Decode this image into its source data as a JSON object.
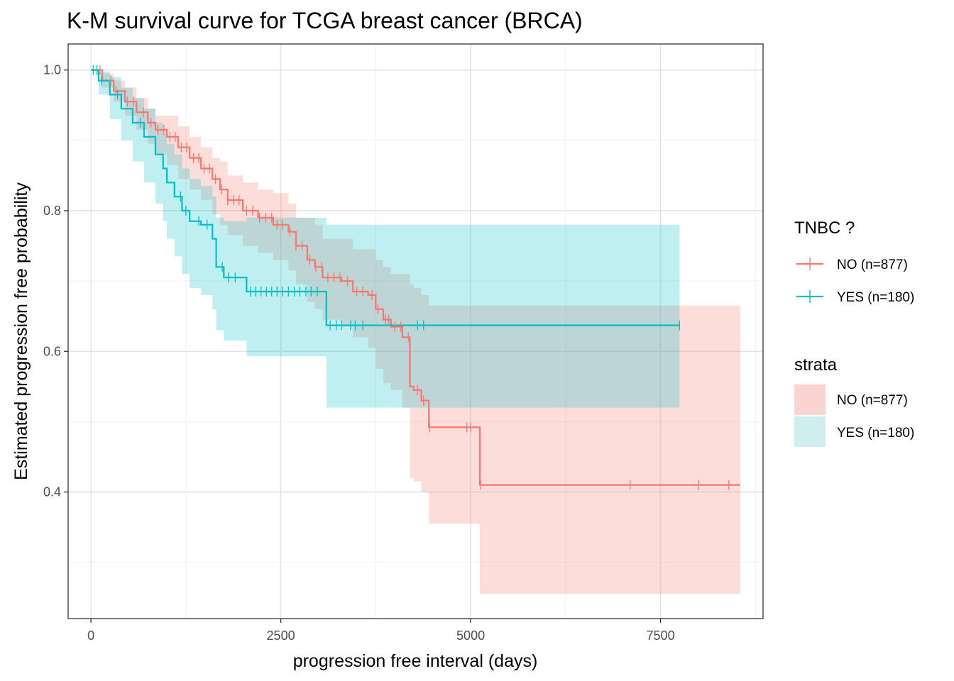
{
  "chart_data": {
    "type": "line",
    "subtype": "kaplan-meier-step",
    "title": "K-M survival curve for TCGA breast cancer (BRCA)",
    "xlabel": "progression free interval (days)",
    "ylabel": "Estimated progression free probability",
    "xlim": [
      -300,
      8850
    ],
    "ylim": [
      0.22,
      1.037
    ],
    "x_ticks": [
      {
        "value": 0,
        "label": "0"
      },
      {
        "value": 2500,
        "label": "2500"
      },
      {
        "value": 5000,
        "label": "5000"
      },
      {
        "value": 7500,
        "label": "7500"
      }
    ],
    "y_ticks": [
      {
        "value": 0.4,
        "label": "0.4"
      },
      {
        "value": 0.6,
        "label": "0.6"
      },
      {
        "value": 0.8,
        "label": "0.8"
      },
      {
        "value": 1.0,
        "label": "1.0"
      }
    ],
    "grid": true,
    "legend_placement": "right",
    "legends": [
      {
        "title": "TNBC ?",
        "kind": "line",
        "entries": [
          "NO (n=877)",
          "YES (n=180)"
        ]
      },
      {
        "title": "strata",
        "kind": "fill",
        "entries": [
          "NO (n=877)",
          "YES (n=180)"
        ]
      }
    ],
    "series": [
      {
        "name": "NO (n=877)",
        "color": "#f8766d",
        "fill_color": "#fbd3d0",
        "x": [
          0,
          150,
          300,
          450,
          600,
          750,
          850,
          1000,
          1150,
          1300,
          1450,
          1600,
          1700,
          1800,
          2000,
          2200,
          2400,
          2600,
          2700,
          2850,
          2950,
          3050,
          3300,
          3450,
          3650,
          3750,
          3850,
          3950,
          4100,
          4200,
          4250,
          4350,
          4450,
          5050,
          5120,
          8550
        ],
        "y": [
          1.0,
          0.985,
          0.97,
          0.955,
          0.94,
          0.925,
          0.915,
          0.905,
          0.89,
          0.875,
          0.86,
          0.845,
          0.83,
          0.815,
          0.8,
          0.79,
          0.78,
          0.77,
          0.75,
          0.73,
          0.72,
          0.705,
          0.7,
          0.685,
          0.68,
          0.66,
          0.645,
          0.635,
          0.62,
          0.55,
          0.545,
          0.53,
          0.492,
          0.492,
          0.41,
          0.41
        ],
        "lower": [
          1.0,
          0.975,
          0.955,
          0.935,
          0.915,
          0.895,
          0.88,
          0.865,
          0.845,
          0.83,
          0.815,
          0.795,
          0.78,
          0.765,
          0.75,
          0.74,
          0.73,
          0.715,
          0.695,
          0.67,
          0.66,
          0.645,
          0.635,
          0.62,
          0.605,
          0.575,
          0.555,
          0.545,
          0.52,
          0.42,
          0.415,
          0.4,
          0.355,
          0.355,
          0.255,
          0.255
        ],
        "upper": [
          1.0,
          0.995,
          0.985,
          0.975,
          0.96,
          0.945,
          0.935,
          0.935,
          0.92,
          0.905,
          0.89,
          0.875,
          0.87,
          0.85,
          0.84,
          0.83,
          0.825,
          0.81,
          0.79,
          0.79,
          0.78,
          0.76,
          0.76,
          0.745,
          0.745,
          0.73,
          0.72,
          0.71,
          0.71,
          0.695,
          0.69,
          0.68,
          0.665,
          0.665,
          0.665,
          0.665
        ],
        "censor_x": [
          120,
          260,
          330,
          480,
          560,
          690,
          790,
          880,
          960,
          1040,
          1110,
          1190,
          1260,
          1350,
          1420,
          1490,
          1560,
          1640,
          1720,
          1800,
          1880,
          1950,
          2050,
          2130,
          2220,
          2300,
          2380,
          2450,
          2520,
          2620,
          2700,
          2780,
          2880,
          2960,
          3040,
          3120,
          3200,
          3280,
          3380,
          3500,
          3580,
          3700,
          3780,
          3880,
          3920,
          4000,
          4080,
          4180,
          4300,
          4380,
          4460,
          4950,
          5000,
          5130,
          7100,
          8000,
          8400
        ]
      },
      {
        "name": "YES (n=180)",
        "color": "#00bfc4",
        "fill_color": "#d0eef0",
        "x": [
          0,
          100,
          250,
          400,
          550,
          700,
          850,
          950,
          1000,
          1100,
          1200,
          1300,
          1450,
          1600,
          1650,
          1750,
          2050,
          3050,
          3100,
          7750
        ],
        "y": [
          1.0,
          0.985,
          0.965,
          0.945,
          0.925,
          0.905,
          0.88,
          0.86,
          0.84,
          0.82,
          0.8,
          0.785,
          0.78,
          0.76,
          0.72,
          0.705,
          0.685,
          0.685,
          0.637,
          0.637
        ],
        "lower": [
          1.0,
          0.965,
          0.93,
          0.9,
          0.87,
          0.84,
          0.81,
          0.785,
          0.76,
          0.735,
          0.71,
          0.69,
          0.68,
          0.66,
          0.63,
          0.615,
          0.593,
          0.593,
          0.52,
          0.52
        ],
        "upper": [
          1.0,
          0.998,
          0.99,
          0.975,
          0.96,
          0.945,
          0.925,
          0.91,
          0.895,
          0.88,
          0.86,
          0.845,
          0.835,
          0.82,
          0.79,
          0.785,
          0.79,
          0.79,
          0.78,
          0.78
        ],
        "censor_x": [
          30,
          80,
          140,
          350,
          650,
          1180,
          1250,
          1420,
          1530,
          1730,
          1810,
          1900,
          2100,
          2170,
          2240,
          2310,
          2380,
          2450,
          2520,
          2600,
          2680,
          2750,
          2830,
          2900,
          2980,
          3150,
          3230,
          3300,
          3420,
          3480,
          3580,
          4300,
          4380,
          7750
        ]
      }
    ]
  }
}
